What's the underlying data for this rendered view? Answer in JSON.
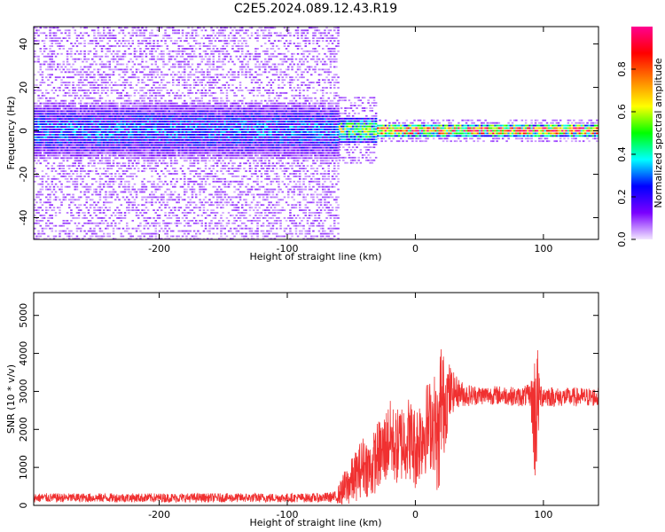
{
  "title": "C2E5.2024.089.12.43.R19",
  "chart_data": [
    {
      "type": "heatmap",
      "xlabel": "Height of straight line (km)",
      "ylabel": "Frequency (Hz)",
      "xlim": [
        -298,
        143
      ],
      "ylim": [
        -50,
        48
      ],
      "x_ticks": [
        -200,
        -100,
        0,
        100
      ],
      "y_ticks": [
        -40,
        -20,
        0,
        20,
        40
      ],
      "x_tick_labels": [
        "-200",
        "-100",
        "0",
        "100"
      ],
      "y_tick_labels": [
        "-40",
        "-20",
        "0",
        "20",
        "40"
      ],
      "grid": false,
      "colorbar": {
        "label": "Normalized spectral amplitude",
        "range": [
          0,
          1
        ],
        "ticks": [
          0.0,
          0.2,
          0.4,
          0.6,
          0.8
        ],
        "tick_labels": [
          "0.0",
          "0.2",
          "0.4",
          "0.6",
          "0.8"
        ],
        "colormap": [
          "#f2e6ff",
          "#7a00ff",
          "#0000ff",
          "#00ffff",
          "#00ff00",
          "#ffff00",
          "#ff8000",
          "#ff0000",
          "#ff0090"
        ]
      },
      "regions": [
        {
          "x_range": [
            -298,
            -60
          ],
          "frequency_center": 0,
          "core_halfwidth_hz": 8,
          "spread_halfwidth_hz": 50,
          "peak_amplitude": 0.3
        },
        {
          "x_range": [
            -60,
            -30
          ],
          "frequency_center": 0,
          "core_halfwidth_hz": 4,
          "spread_halfwidth_hz": 15,
          "peak_amplitude": 0.55
        },
        {
          "x_range": [
            -30,
            143
          ],
          "frequency_center": 0,
          "core_halfwidth_hz": 2,
          "spread_halfwidth_hz": 5,
          "peak_amplitude": 0.9
        }
      ]
    },
    {
      "type": "line",
      "xlabel": "Height of straight line (km)",
      "ylabel": "SNR (10 * v/v)",
      "xlim": [
        -298,
        143
      ],
      "ylim": [
        0,
        5600
      ],
      "x_ticks": [
        -200,
        -100,
        0,
        100
      ],
      "y_ticks": [
        0,
        1000,
        2000,
        3000,
        4000,
        5000
      ],
      "x_tick_labels": [
        "-200",
        "-100",
        "0",
        "100"
      ],
      "y_tick_labels": [
        "0",
        "1000",
        "2000",
        "3000",
        "4000",
        "5000"
      ],
      "grid": false,
      "line_color": "#f03030",
      "x": [
        -298,
        -250,
        -200,
        -150,
        -100,
        -75,
        -62,
        -55,
        -48,
        -40,
        -35,
        -30,
        -25,
        -20,
        -15,
        -10,
        -5,
        0,
        5,
        10,
        15,
        18,
        20,
        22,
        25,
        30,
        35,
        40,
        50,
        60,
        70,
        80,
        90,
        93,
        95,
        97,
        100,
        110,
        120,
        130,
        143
      ],
      "values": [
        200,
        200,
        200,
        200,
        200,
        200,
        220,
        450,
        700,
        1100,
        900,
        1300,
        1400,
        1800,
        1500,
        1700,
        1800,
        1500,
        1900,
        2100,
        2200,
        1500,
        2900,
        2600,
        2900,
        3000,
        2950,
        2900,
        2900,
        2900,
        2900,
        2850,
        2900,
        2300,
        2700,
        2900,
        2900,
        2850,
        2850,
        2850,
        2850
      ],
      "noise_amplitude": [
        120,
        120,
        120,
        120,
        120,
        120,
        150,
        500,
        650,
        800,
        800,
        900,
        1000,
        1000,
        1000,
        1100,
        1100,
        1100,
        1200,
        1200,
        1300,
        1500,
        1900,
        1400,
        1000,
        500,
        350,
        300,
        250,
        250,
        250,
        250,
        300,
        1800,
        1900,
        400,
        300,
        250,
        250,
        250,
        250
      ]
    }
  ]
}
